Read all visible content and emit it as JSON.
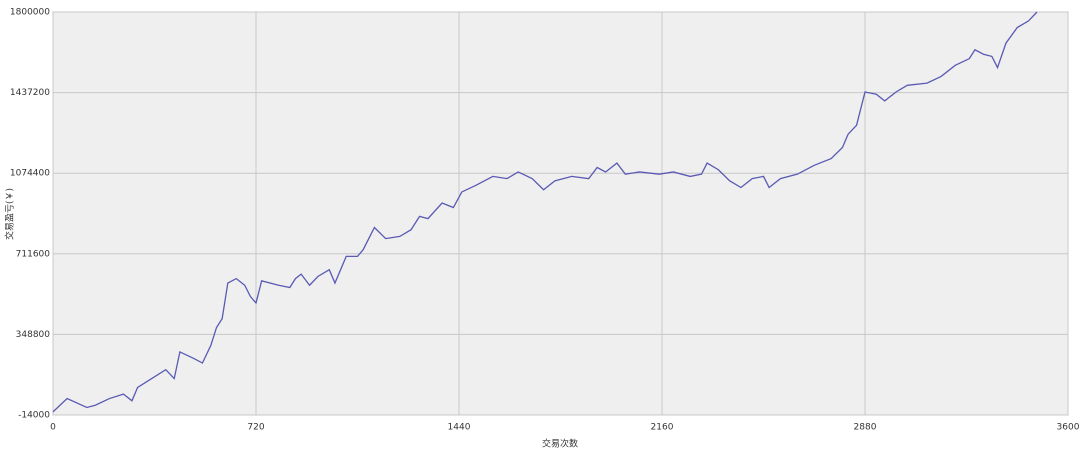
{
  "chart_data": {
    "type": "line",
    "x_label": "交易次数",
    "y_label": "交易盈亏(￥)",
    "xlim": [
      0,
      3600
    ],
    "xticks": [
      0,
      720,
      1440,
      2160,
      2880,
      3600
    ],
    "ylim": [
      -14000,
      1800000
    ],
    "yticks": [
      -14000,
      348800,
      711600,
      1074400,
      1437200,
      1800000
    ],
    "grid": true,
    "series": [
      {
        "color": "#5a5ab4",
        "x": [
          0,
          50,
          120,
          150,
          200,
          250,
          280,
          300,
          350,
          400,
          430,
          450,
          500,
          530,
          560,
          580,
          600,
          620,
          650,
          680,
          700,
          720,
          740,
          800,
          840,
          860,
          880,
          910,
          940,
          980,
          1000,
          1040,
          1080,
          1100,
          1140,
          1180,
          1230,
          1270,
          1300,
          1330,
          1380,
          1420,
          1450,
          1500,
          1560,
          1610,
          1650,
          1700,
          1740,
          1780,
          1840,
          1900,
          1930,
          1960,
          2000,
          2030,
          2080,
          2150,
          2200,
          2260,
          2300,
          2320,
          2360,
          2400,
          2440,
          2480,
          2520,
          2540,
          2580,
          2640,
          2700,
          2760,
          2800,
          2820,
          2850,
          2880,
          2920,
          2950,
          2990,
          3030,
          3100,
          3150,
          3200,
          3250,
          3270,
          3300,
          3330,
          3350,
          3380,
          3420,
          3460,
          3490
        ],
        "values": [
          0,
          60000,
          20000,
          30000,
          60000,
          80000,
          50000,
          110000,
          150000,
          190000,
          150000,
          270000,
          240000,
          220000,
          300000,
          380000,
          420000,
          580000,
          600000,
          570000,
          520000,
          490000,
          590000,
          570000,
          560000,
          600000,
          620000,
          570000,
          610000,
          640000,
          580000,
          700000,
          700000,
          730000,
          830000,
          780000,
          790000,
          820000,
          880000,
          870000,
          940000,
          920000,
          990000,
          1020000,
          1060000,
          1050000,
          1080000,
          1050000,
          1000000,
          1040000,
          1060000,
          1050000,
          1100000,
          1080000,
          1120000,
          1070000,
          1080000,
          1070000,
          1080000,
          1060000,
          1070000,
          1120000,
          1090000,
          1040000,
          1010000,
          1050000,
          1060000,
          1010000,
          1050000,
          1070000,
          1110000,
          1140000,
          1190000,
          1250000,
          1290000,
          1440000,
          1430000,
          1400000,
          1440000,
          1470000,
          1480000,
          1510000,
          1560000,
          1590000,
          1630000,
          1610000,
          1600000,
          1550000,
          1660000,
          1730000,
          1760000,
          1800000
        ]
      }
    ]
  }
}
